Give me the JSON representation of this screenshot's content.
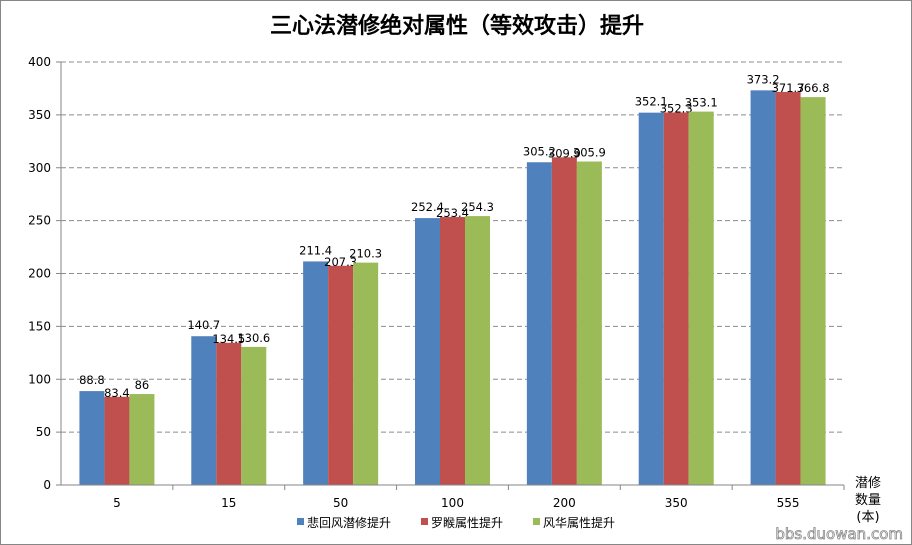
{
  "chart_data": {
    "type": "bar",
    "title": "三心法潜修绝对属性（等效攻击）提升",
    "xlabel": "潜修数量(本)",
    "xlabel_lines": [
      "潜修",
      "数量",
      "(本)"
    ],
    "ylabel": "",
    "ylim": [
      0,
      400
    ],
    "yticks": [
      0,
      50,
      100,
      150,
      200,
      250,
      300,
      350,
      400
    ],
    "grid": true,
    "legend_position": "bottom",
    "categories": [
      "5",
      "15",
      "50",
      "100",
      "200",
      "350",
      "555"
    ],
    "series": [
      {
        "name": "悲回风潜修提升",
        "color": "#4F81BD",
        "values": [
          88.8,
          140.7,
          211.4,
          252.4,
          305.2,
          352.1,
          373.2
        ]
      },
      {
        "name": "罗睺属性提升",
        "color": "#C0504D",
        "values": [
          83.4,
          134.5,
          207.3,
          253.4,
          309.9,
          352.3,
          371.7
        ]
      },
      {
        "name": "风华属性提升",
        "color": "#9BBB59",
        "values": [
          86,
          130.6,
          210.3,
          254.3,
          305.9,
          353.1,
          366.8
        ]
      }
    ]
  },
  "watermark": "bbs.duowan.com"
}
